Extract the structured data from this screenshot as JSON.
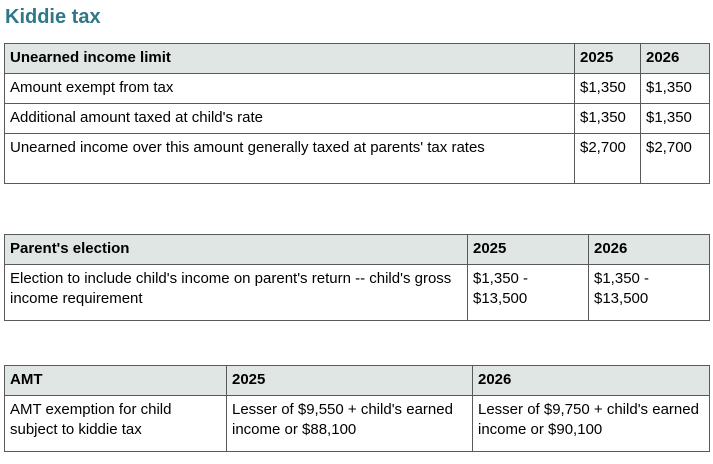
{
  "page": {
    "title": "Kiddie tax"
  },
  "colors": {
    "title_accent": "#2e7889",
    "table_header_bg": "#e0e6e4",
    "table_border": "#595959"
  },
  "tables": [
    {
      "name": "unearned-income-limit",
      "header": [
        "Unearned income limit",
        "2025",
        "2026"
      ],
      "rows": [
        [
          "Amount exempt from tax",
          "$1,350",
          "$1,350"
        ],
        [
          "Additional amount taxed at child's rate",
          "$1,350",
          "$1,350"
        ],
        [
          "Unearned income over this amount generally taxed at parents' tax rates",
          "$2,700",
          "$2,700"
        ]
      ]
    },
    {
      "name": "parents-election",
      "header": [
        "Parent's election",
        "2025",
        "2026"
      ],
      "rows": [
        [
          "Election to include child's income on parent's return -- child's gross income requirement",
          "$1,350 - $13,500",
          "$1,350 - $13,500"
        ]
      ]
    },
    {
      "name": "amt",
      "header": [
        "AMT",
        "2025",
        "2026"
      ],
      "rows": [
        [
          "AMT exemption for child subject to kiddie tax",
          "Lesser of $9,550 + child's earned income or $88,100",
          "Lesser of $9,750 + child's earned income or $90,100"
        ]
      ]
    }
  ]
}
